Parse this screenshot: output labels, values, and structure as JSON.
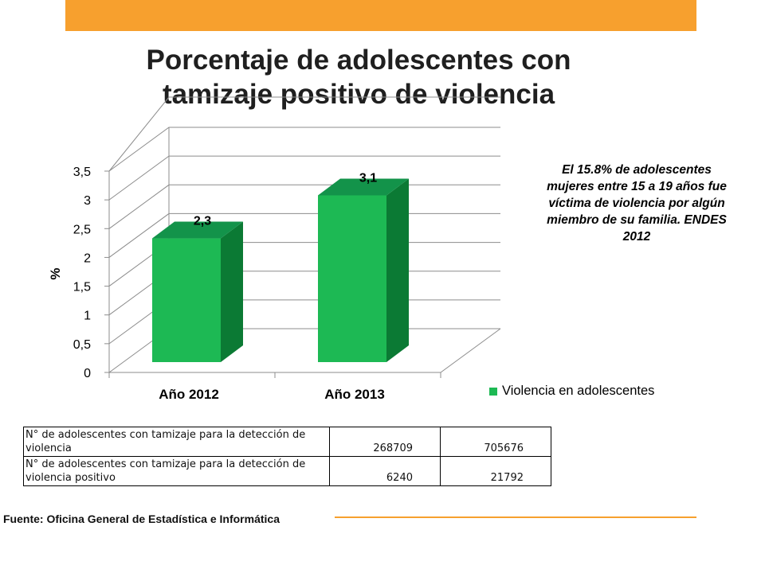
{
  "title": "Porcentaje de adolescentes con tamizaje positivo de violencia",
  "chart_data": {
    "type": "bar",
    "categories": [
      "Año 2012",
      "Año 2013"
    ],
    "series": [
      {
        "name": "Violencia en adolescentes",
        "values": [
          2.3,
          3.1
        ],
        "color": "#1db954"
      }
    ],
    "data_labels": [
      "2,3",
      "3,1"
    ],
    "ylabel": "%",
    "ylim": [
      0,
      3.5
    ],
    "yticks": [
      "0",
      "0,5",
      "1",
      "1,5",
      "2",
      "2,5",
      "3",
      "3,5"
    ],
    "grid": true,
    "legend_position": "right",
    "style": "3d"
  },
  "annotation": "El 15.8% de adolescentes mujeres entre 15 a 19 años fue víctima de violencia por algún miembro de su familia. ENDES 2012",
  "table": {
    "rows": [
      {
        "label": "N° de adolescentes con tamizaje para la detección de violencia",
        "values": [
          "268709",
          "705676"
        ]
      },
      {
        "label": "N° de adolescentes con tamizaje para la detección de violencia positivo",
        "values": [
          "6240",
          "21792"
        ]
      }
    ]
  },
  "source": "Fuente: Oficina General de Estadística e Informática",
  "colors": {
    "accent": "#f7a02e",
    "bar_front": "#1db954",
    "bar_side": "#0b7a34",
    "bar_top": "#13934a"
  }
}
